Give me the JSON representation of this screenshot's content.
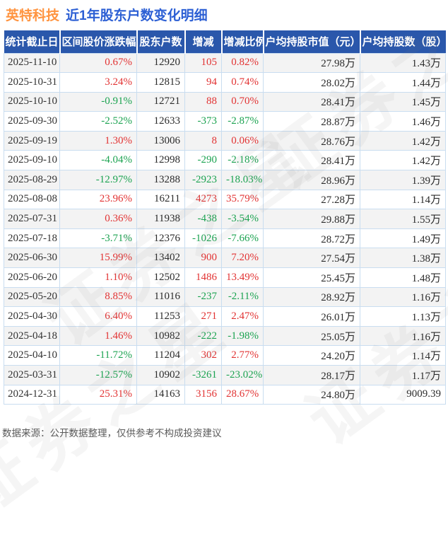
{
  "title": {
    "company": "英特科技",
    "subtitle": "近1年股东户数变化明细"
  },
  "watermark_text": "证券之星",
  "colors": {
    "up_red": "#e23333",
    "down_green": "#1ca351",
    "header_bg": "#2a57ab",
    "title_company_orange": "#ff9440",
    "title_subtitle_blue": "#2c5fd4",
    "cell_border": "#c9ddf0",
    "alt_row_bg": "#f3f3f3"
  },
  "chart_data": {
    "type": "table",
    "title": "英特科技 近1年股东户数变化明细",
    "columns": [
      "统计截止日",
      "区间股价涨跌幅",
      "股东户数",
      "增减",
      "增减比例",
      "户均持股市值（元）",
      "户均持股数（股）"
    ],
    "signed_column_indexes": [
      1,
      3,
      4
    ],
    "rows": [
      [
        "2025-11-10",
        "0.67%",
        "12920",
        "105",
        "0.82%",
        "27.98万",
        "1.43万"
      ],
      [
        "2025-10-31",
        "3.24%",
        "12815",
        "94",
        "0.74%",
        "28.02万",
        "1.44万"
      ],
      [
        "2025-10-10",
        "-0.91%",
        "12721",
        "88",
        "0.70%",
        "28.41万",
        "1.45万"
      ],
      [
        "2025-09-30",
        "-2.52%",
        "12633",
        "-373",
        "-2.87%",
        "28.87万",
        "1.46万"
      ],
      [
        "2025-09-19",
        "1.30%",
        "13006",
        "8",
        "0.06%",
        "28.76万",
        "1.42万"
      ],
      [
        "2025-09-10",
        "-4.04%",
        "12998",
        "-290",
        "-2.18%",
        "28.41万",
        "1.42万"
      ],
      [
        "2025-08-29",
        "-12.97%",
        "13288",
        "-2923",
        "-18.03%",
        "28.96万",
        "1.39万"
      ],
      [
        "2025-08-08",
        "23.96%",
        "16211",
        "4273",
        "35.79%",
        "27.28万",
        "1.14万"
      ],
      [
        "2025-07-31",
        "0.36%",
        "11938",
        "-438",
        "-3.54%",
        "29.88万",
        "1.55万"
      ],
      [
        "2025-07-18",
        "-3.71%",
        "12376",
        "-1026",
        "-7.66%",
        "28.72万",
        "1.49万"
      ],
      [
        "2025-06-30",
        "15.99%",
        "13402",
        "900",
        "7.20%",
        "27.54万",
        "1.38万"
      ],
      [
        "2025-06-20",
        "1.10%",
        "12502",
        "1486",
        "13.49%",
        "25.45万",
        "1.48万"
      ],
      [
        "2025-05-20",
        "8.85%",
        "11016",
        "-237",
        "-2.11%",
        "28.92万",
        "1.16万"
      ],
      [
        "2025-04-30",
        "6.40%",
        "11253",
        "271",
        "2.47%",
        "26.01万",
        "1.13万"
      ],
      [
        "2025-04-18",
        "1.46%",
        "10982",
        "-222",
        "-1.98%",
        "25.05万",
        "1.16万"
      ],
      [
        "2025-04-10",
        "-11.72%",
        "11204",
        "302",
        "2.77%",
        "24.20万",
        "1.14万"
      ],
      [
        "2025-03-31",
        "-12.57%",
        "10902",
        "-3261",
        "-23.02%",
        "28.17万",
        "1.17万"
      ],
      [
        "2024-12-31",
        "25.31%",
        "14163",
        "3156",
        "28.67%",
        "24.80万",
        "9009.39"
      ]
    ]
  },
  "footer": {
    "note": "数据来源：公开数据整理，仅供参考不构成投资建议"
  }
}
